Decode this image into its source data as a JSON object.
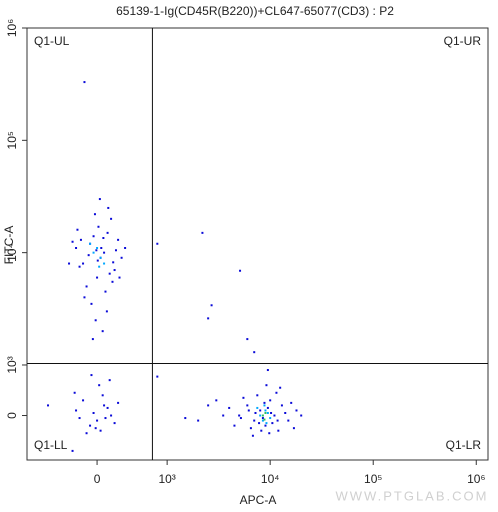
{
  "chart_data": {
    "type": "scatter",
    "title": "65139-1-Ig(CD45R(B220))+CL647-65077(CD3) : P2",
    "x_label": "APC-A",
    "y_label": "FITC-A",
    "watermark": "WWW.PTGLAB.COM",
    "scale": "biexponential",
    "xlim": [
      -1000,
      1300000
    ],
    "ylim": [
      -880,
      1000000
    ],
    "xticks": [
      0,
      {
        "value": 1000,
        "label": "10³"
      },
      {
        "value": 10000,
        "label": "10⁴"
      },
      {
        "value": 100000,
        "label": "10⁵"
      },
      {
        "value": 1000000,
        "label": "10⁶"
      }
    ],
    "yticks": [
      0,
      {
        "value": 1000,
        "label": "10³"
      },
      {
        "value": 10000,
        "label": "10⁴"
      },
      {
        "value": 100000,
        "label": "10⁵"
      },
      {
        "value": 1000000,
        "label": "10⁶"
      }
    ],
    "quadrants": {
      "x": 790,
      "y": 1030,
      "labels": [
        "Q1-UL",
        "Q1-UR",
        "Q1-LL",
        "Q1-LR"
      ]
    },
    "series": [
      {
        "color": "#0a0ad8",
        "x": [
          -200,
          -100,
          50,
          150,
          250,
          -300,
          0,
          100,
          300,
          -150,
          200,
          -50,
          350,
          -250,
          120,
          60,
          -120,
          180,
          -350,
          270,
          20,
          -80,
          140,
          -20,
          80,
          -60,
          220,
          -280,
          320,
          10,
          400,
          -400,
          40,
          -30,
          160,
          -180,
          90,
          -10,
          230,
          -230,
          -180,
          -300,
          -100,
          100,
          0,
          200,
          -200,
          50,
          150,
          -50,
          250,
          -250,
          80,
          -150,
          30,
          -80,
          120,
          300,
          -20,
          180,
          -320,
          5000,
          6000,
          7000,
          8000,
          9000,
          10000,
          11000,
          12000,
          4000,
          6500,
          7500,
          8500,
          9500,
          10500,
          13000,
          15000,
          5500,
          7200,
          8800,
          9800,
          11500,
          6800,
          4500,
          14000,
          16000,
          3500,
          3000,
          2000,
          2500,
          17000,
          12500,
          9200,
          7800,
          6200,
          10200,
          8200,
          11800,
          5200,
          18000,
          1500,
          2200,
          5100,
          2700,
          6000,
          860,
          860,
          2500,
          7000,
          9500,
          -350,
          20000,
          -700
        ],
        "values": [
          8000,
          12000,
          9000,
          15000,
          7000,
          11000,
          6000,
          10000,
          13000,
          5000,
          20000,
          14000,
          9000,
          7500,
          4500,
          11000,
          9500,
          6500,
          12500,
          10500,
          17000,
          3500,
          3000,
          2500,
          2000,
          1700,
          5500,
          16000,
          6000,
          8500,
          11000,
          8000,
          30000,
          22000,
          25000,
          4000,
          13500,
          10500,
          8200,
          13000,
          330000,
          100,
          -200,
          200,
          -100,
          0,
          300,
          -300,
          150,
          50,
          -150,
          -50,
          400,
          -350,
          600,
          800,
          -50,
          250,
          -250,
          700,
          450,
          0,
          200,
          -100,
          100,
          -200,
          300,
          0,
          -300,
          150,
          -250,
          400,
          -50,
          150,
          -150,
          200,
          -100,
          350,
          50,
          250,
          -350,
          450,
          -400,
          -200,
          50,
          250,
          0,
          300,
          -100,
          200,
          -250,
          550,
          600,
          -150,
          100,
          50,
          -300,
          -100,
          -50,
          100,
          -50,
          15000,
          6900,
          3400,
          1700,
          12000,
          770,
          2600,
          1300,
          900,
          -700,
          0,
          200
        ]
      },
      {
        "color": "#00a8ff",
        "x": [
          -50,
          50,
          0,
          100,
          -100,
          30,
          8000,
          9000,
          8500,
          9500,
          7500,
          10000,
          8800,
          9200
        ],
        "values": [
          10000,
          9000,
          11000,
          8000,
          12000,
          7500,
          0,
          100,
          -100,
          50,
          150,
          -50,
          200,
          -150
        ]
      },
      {
        "color": "#30c060",
        "x": [
          8500,
          9000,
          8800
        ],
        "values": [
          0,
          50,
          -80
        ]
      }
    ]
  }
}
